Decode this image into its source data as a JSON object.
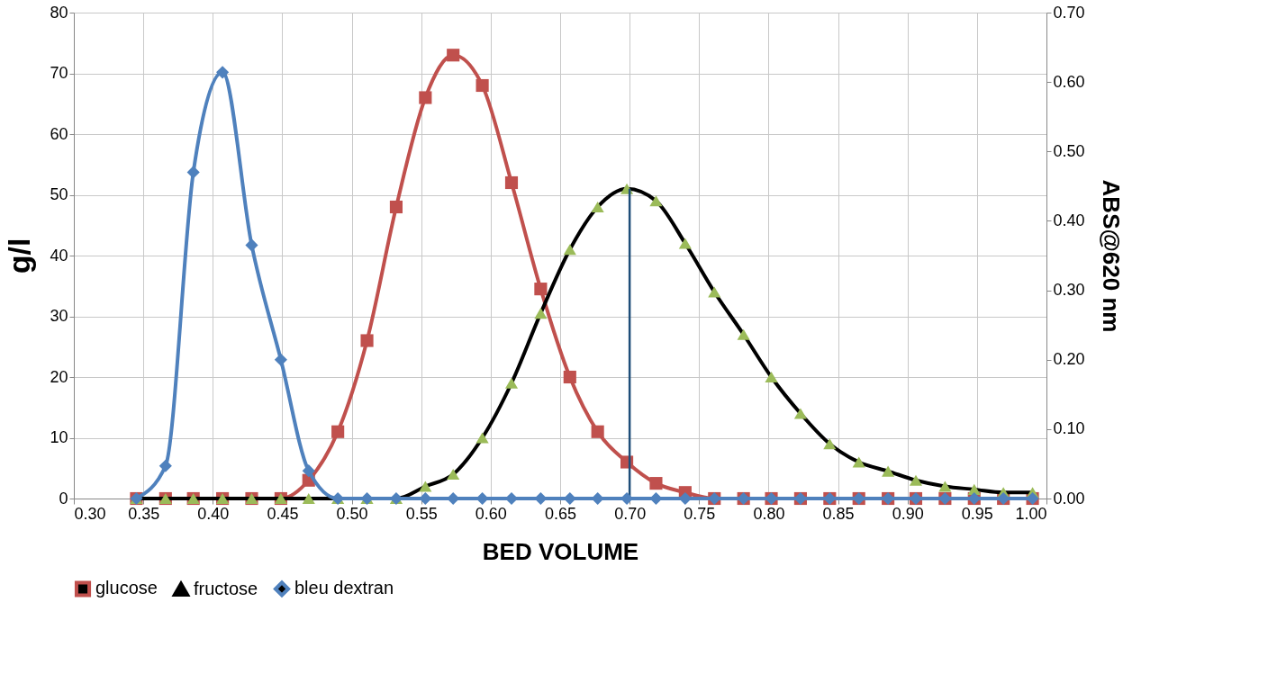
{
  "chart_data": {
    "type": "line",
    "xlabel": "BED VOLUME",
    "ylabel": "g/l",
    "y2label": "ABS@620 nm",
    "x": [
      0.345,
      0.366,
      0.386,
      0.407,
      0.428,
      0.449,
      0.469,
      0.49,
      0.511,
      0.532,
      0.553,
      0.573,
      0.594,
      0.615,
      0.636,
      0.657,
      0.677,
      0.698,
      0.719,
      0.74,
      0.761,
      0.782,
      0.802,
      0.823,
      0.844,
      0.865,
      0.886,
      0.906,
      0.927,
      0.948,
      0.969,
      0.99
    ],
    "series": [
      {
        "name": "glucose",
        "color": "#c0504d",
        "marker": "square",
        "values": [
          0,
          0,
          0,
          0,
          0,
          0,
          3,
          11,
          26,
          48,
          66,
          73,
          68,
          52,
          34.5,
          20,
          11,
          6,
          2.5,
          1,
          0,
          0,
          0,
          0,
          0,
          0,
          0,
          0,
          0,
          0,
          0,
          0
        ]
      },
      {
        "name": "fructose",
        "color": "#000000",
        "marker": "triangle",
        "colors": [
          "#9bbb59",
          "#9bbb59",
          "#9bbb59",
          "#9bbb59",
          "#9bbb59",
          "#9bbb59",
          "#9bbb59",
          "#9bbb59",
          "#9bbb59",
          "#9bbb59",
          "#9bbb59",
          "#9bbb59",
          "#9bbb59",
          "#9bbb59",
          "#9bbb59",
          "#9bbb59",
          "#9bbb59",
          "#9bbb59",
          "#9bbb59",
          "#9bbb59",
          "#9bbb59",
          "#9bbb59",
          "#9bbb59",
          "#9bbb59",
          "#9bbb59",
          "#9bbb59",
          "#9bbb59",
          "#9bbb59",
          "#9bbb59",
          "#9bbb59",
          "#9bbb59",
          "#9bbb59"
        ],
        "values": [
          0,
          0,
          0,
          0,
          0,
          0,
          0,
          0,
          0,
          0,
          2,
          4,
          10,
          19,
          30.5,
          41,
          48,
          51,
          49,
          42,
          34,
          27,
          20,
          14,
          9,
          6,
          4.5,
          3,
          2,
          1.5,
          1,
          1
        ]
      },
      {
        "name": "bleu dextran",
        "color": "#4f81bd",
        "marker": "diamond",
        "axis": "y2",
        "values": [
          0,
          0.047,
          0.47,
          0.614,
          0.365,
          0.2,
          0.04,
          0,
          0,
          0,
          0,
          0,
          0,
          0,
          0,
          0,
          0,
          0,
          0,
          0,
          0,
          0,
          0,
          0,
          0,
          0,
          0,
          0,
          0,
          0,
          0,
          0
        ]
      }
    ],
    "xlim": [
      0.3,
      1.0
    ],
    "xticks": [
      {
        "value": 0.3,
        "label": "0.30"
      },
      {
        "value": 0.35,
        "label": "0.35"
      },
      {
        "value": 0.4,
        "label": "0.40"
      },
      {
        "value": 0.45,
        "label": "0.45"
      },
      {
        "value": 0.5,
        "label": "0.50"
      },
      {
        "value": 0.55,
        "label": "0.55"
      },
      {
        "value": 0.6,
        "label": "0.60"
      },
      {
        "value": 0.65,
        "label": "0.65"
      },
      {
        "value": 0.7,
        "label": "0.70"
      },
      {
        "value": 0.75,
        "label": "0.75"
      },
      {
        "value": 0.8,
        "label": "0.80"
      },
      {
        "value": 0.85,
        "label": "0.85"
      },
      {
        "value": 0.9,
        "label": "0.90"
      },
      {
        "value": 0.95,
        "label": "0.95"
      },
      {
        "value": 1.0,
        "label": "1.00"
      }
    ],
    "ylim": [
      0,
      80
    ],
    "yticks": [
      0,
      10,
      20,
      30,
      40,
      50,
      60,
      70,
      80
    ],
    "y2lim": [
      0,
      0.7
    ],
    "y2ticks": [
      {
        "value": 0,
        "label": "0.00"
      },
      {
        "value": 0.1,
        "label": "0.10"
      },
      {
        "value": 0.2,
        "label": "0.20"
      },
      {
        "value": 0.3,
        "label": "0.30"
      },
      {
        "value": 0.4,
        "label": "0.40"
      },
      {
        "value": 0.5,
        "label": "0.50"
      },
      {
        "value": 0.6,
        "label": "0.60"
      },
      {
        "value": 0.7,
        "label": "0.70"
      }
    ],
    "ref_lines": [
      {
        "axis": "x",
        "value": 0.7,
        "color": "#1f4e79"
      }
    ],
    "grid": true,
    "legend": "bottom",
    "line_style": "solid"
  }
}
